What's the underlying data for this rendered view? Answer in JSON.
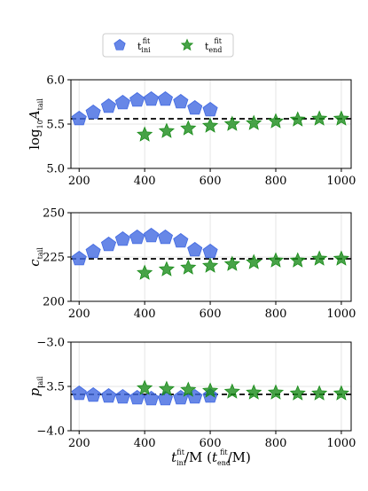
{
  "legend": {
    "items": [
      {
        "name": "t_ini^fit",
        "base": "t",
        "sup": "fit",
        "sub": "ini",
        "marker": "pentagon",
        "color": "#4169e1"
      },
      {
        "name": "t_end^fit",
        "base": "t",
        "sup": "fit",
        "sub": "end",
        "marker": "star",
        "color": "#1a8c1a"
      }
    ]
  },
  "xaxis": {
    "label_base": "t",
    "label_sup": "fit",
    "label_sub1": "ini",
    "label_mid": "/M (",
    "label_sub2": "end",
    "label_end": "/M)",
    "range": [
      175,
      1030
    ],
    "ticks": [
      200,
      400,
      600,
      800,
      1000
    ]
  },
  "chart_data": [
    {
      "type": "scatter",
      "ylabel": "log10 A_tail",
      "ylabel_parts": {
        "pre": "log",
        "presub": "10",
        "mid": "A",
        "sub": "tail"
      },
      "ylim": [
        5.0,
        6.0
      ],
      "yticks": [
        5.0,
        5.5,
        6.0
      ],
      "ytick_labels": [
        "5.0",
        "5.5",
        "6.0"
      ],
      "reference_line": 5.56,
      "series": [
        {
          "name": "t_ini^fit",
          "marker": "pentagon",
          "color": "#4169e1",
          "x": [
            200,
            243,
            290,
            333,
            377,
            420,
            463,
            510,
            553,
            600
          ],
          "y": [
            5.56,
            5.63,
            5.7,
            5.74,
            5.77,
            5.78,
            5.78,
            5.75,
            5.68,
            5.66
          ]
        },
        {
          "name": "t_end^fit",
          "marker": "star",
          "color": "#1a8c1a",
          "x": [
            400,
            467,
            533,
            600,
            667,
            733,
            800,
            867,
            933,
            1000
          ],
          "y": [
            5.38,
            5.42,
            5.45,
            5.48,
            5.5,
            5.51,
            5.53,
            5.55,
            5.56,
            5.56
          ]
        }
      ]
    },
    {
      "type": "scatter",
      "ylabel": "c_tail",
      "ylabel_parts": {
        "pre": "",
        "presub": "",
        "mid": "c",
        "sub": "tail"
      },
      "ylim": [
        200,
        250
      ],
      "yticks": [
        200,
        225,
        250
      ],
      "ytick_labels": [
        "200",
        "225",
        "250"
      ],
      "reference_line": 224,
      "series": [
        {
          "name": "t_ini^fit",
          "marker": "pentagon",
          "color": "#4169e1",
          "x": [
            200,
            243,
            290,
            333,
            377,
            420,
            463,
            510,
            553,
            600
          ],
          "y": [
            224,
            228,
            232,
            235,
            236,
            237,
            236,
            234,
            229,
            228
          ]
        },
        {
          "name": "t_end^fit",
          "marker": "star",
          "color": "#1a8c1a",
          "x": [
            400,
            467,
            533,
            600,
            667,
            733,
            800,
            867,
            933,
            1000
          ],
          "y": [
            216,
            218,
            219,
            220,
            221,
            222,
            223,
            223,
            224,
            224
          ]
        }
      ]
    },
    {
      "type": "scatter",
      "ylabel": "p_tail",
      "ylabel_parts": {
        "pre": "",
        "presub": "",
        "mid": "p",
        "sub": "tail"
      },
      "ylim": [
        -4.0,
        -3.0
      ],
      "yticks": [
        -4.0,
        -3.5,
        -3.0
      ],
      "ytick_labels": [
        "−4.0",
        "−3.5",
        "−3.0"
      ],
      "reference_line": -3.59,
      "series": [
        {
          "name": "t_ini^fit",
          "marker": "pentagon",
          "color": "#4169e1",
          "x": [
            200,
            243,
            290,
            333,
            377,
            420,
            463,
            510,
            553,
            600
          ],
          "y": [
            -3.58,
            -3.6,
            -3.61,
            -3.62,
            -3.63,
            -3.64,
            -3.64,
            -3.63,
            -3.62,
            -3.61
          ]
        },
        {
          "name": "t_end^fit",
          "marker": "star",
          "color": "#1a8c1a",
          "x": [
            400,
            467,
            533,
            600,
            667,
            733,
            800,
            867,
            933,
            1000
          ],
          "y": [
            -3.52,
            -3.53,
            -3.54,
            -3.55,
            -3.56,
            -3.57,
            -3.57,
            -3.58,
            -3.58,
            -3.58
          ]
        }
      ]
    }
  ]
}
